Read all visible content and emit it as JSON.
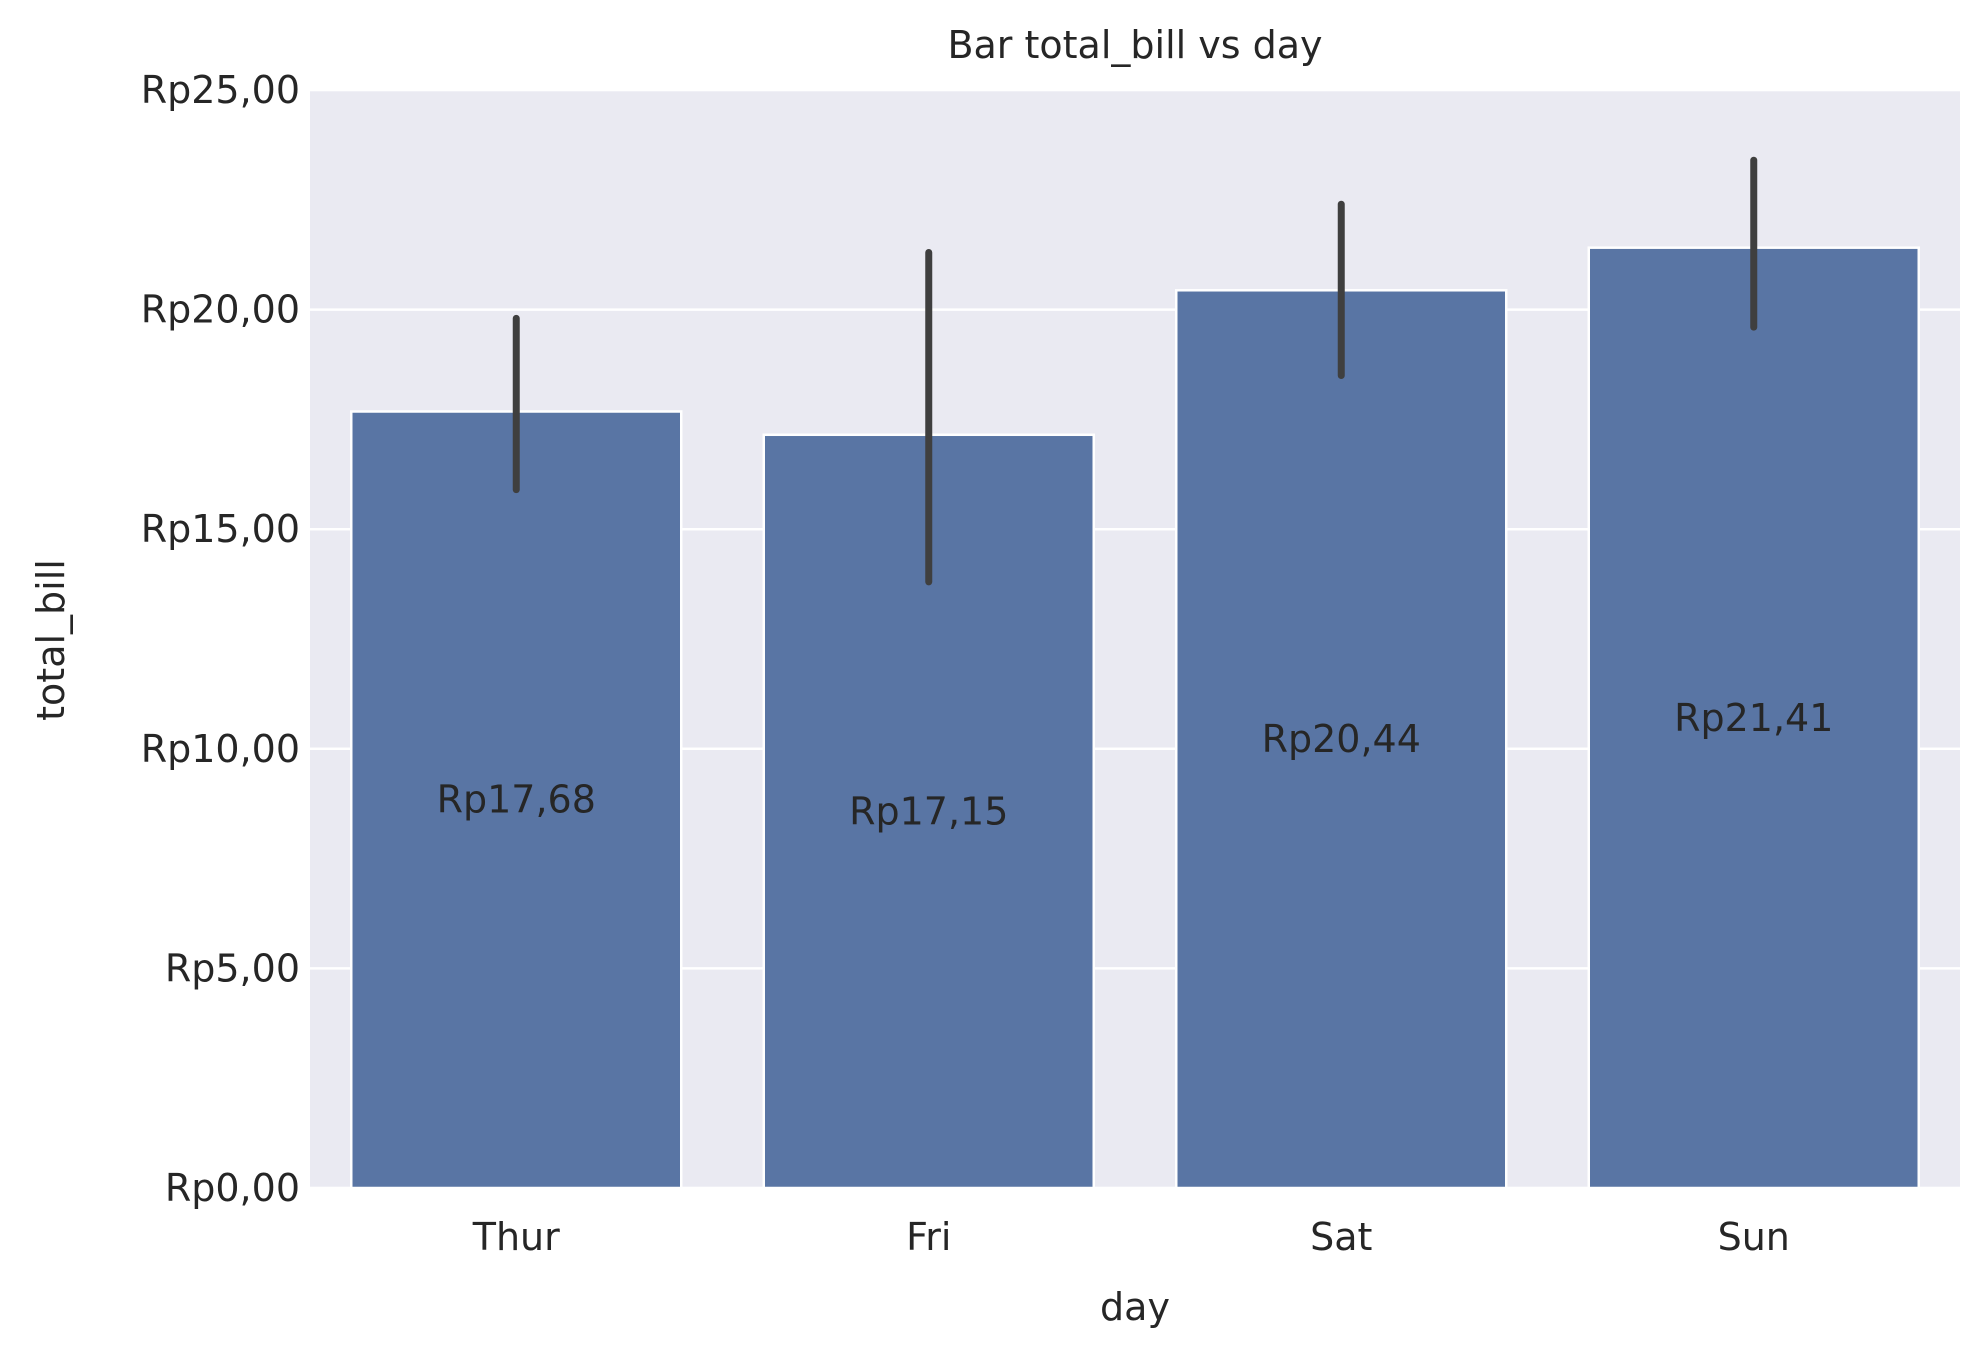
{
  "chart_data": {
    "type": "bar",
    "title": "Bar total_bill vs day",
    "xlabel": "day",
    "ylabel": "total_bill",
    "categories": [
      "Thur",
      "Fri",
      "Sat",
      "Sun"
    ],
    "values": [
      17.68,
      17.15,
      20.44,
      21.41
    ],
    "value_labels": [
      "Rp17,68",
      "Rp17,15",
      "Rp20,44",
      "Rp21,41"
    ],
    "error_bars": [
      {
        "low": 15.9,
        "high": 19.8
      },
      {
        "low": 13.8,
        "high": 21.3
      },
      {
        "low": 18.5,
        "high": 22.4
      },
      {
        "low": 19.6,
        "high": 23.4
      }
    ],
    "ylim": [
      0,
      25
    ],
    "yticks": [
      0,
      5,
      10,
      15,
      20,
      25
    ],
    "ytick_labels": [
      "Rp0,00",
      "Rp5,00",
      "Rp10,00",
      "Rp15,00",
      "Rp20,00",
      "Rp25,00"
    ],
    "grid": true,
    "colors": {
      "bar": "#5975a4",
      "background": "#eaeaf2",
      "grid": "#ffffff",
      "error_bar": "#3f3f3f",
      "text": "#262626"
    }
  }
}
